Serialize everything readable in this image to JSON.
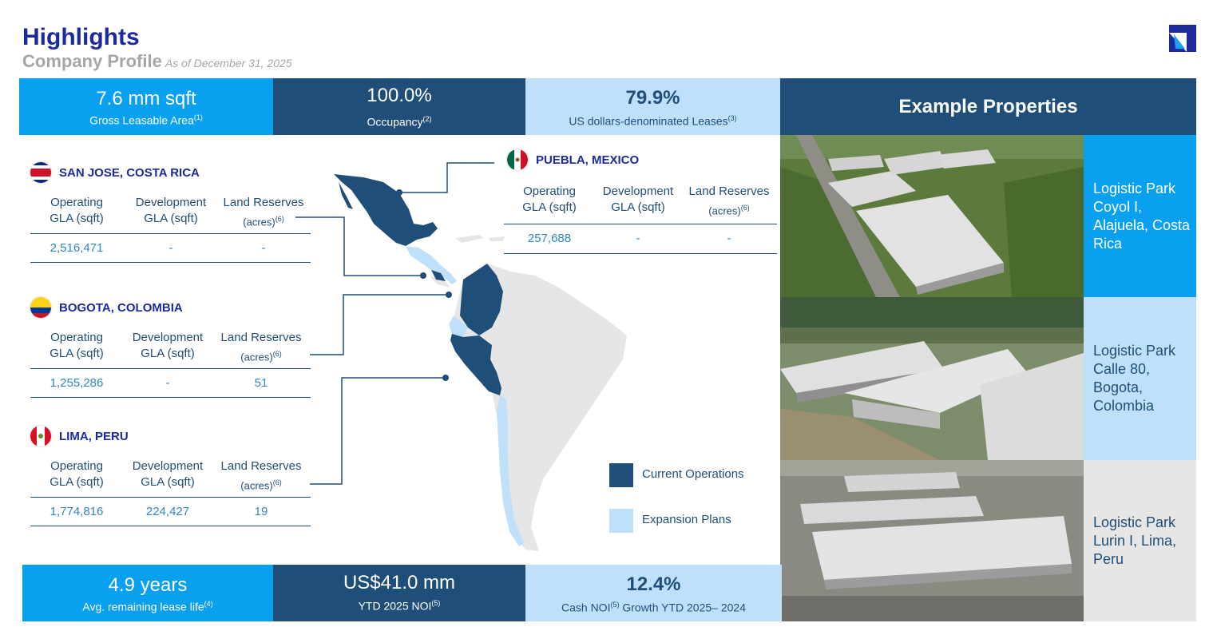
{
  "header": {
    "title": "Highlights",
    "subtitle": "Company Profile",
    "as_of": "As of December 31, 2025"
  },
  "top_stats": [
    {
      "value": "7.6 mm sqft",
      "label": "Gross Leasable Area",
      "note": "(1)"
    },
    {
      "value": "100.0%",
      "label": "Occupancy",
      "note": "(2)"
    },
    {
      "value": "79.9%",
      "label": "US dollars-denominated Leases",
      "note": "(3)"
    }
  ],
  "bottom_stats": [
    {
      "value": "4.9 years",
      "label": "Avg. remaining lease life",
      "note": "(4)"
    },
    {
      "value": "US$41.0 mm",
      "label": "YTD  2025 NOI",
      "note": "(5)"
    },
    {
      "value": "12.4%",
      "label_a": "Cash NOI",
      "note": "(5)",
      "label_b": " Growth YTD 2025– 2024"
    }
  ],
  "columns": {
    "operating": [
      "Operating",
      "GLA (sqft)"
    ],
    "development": [
      "Development",
      "GLA (sqft)"
    ],
    "land": [
      "Land Reserves",
      "(acres)"
    ],
    "land_note": "(6)"
  },
  "locations": [
    {
      "name": "SAN JOSE, COSTA RICA",
      "operating": "2,516,471",
      "development": "-",
      "land": "-"
    },
    {
      "name": "BOGOTA, COLOMBIA",
      "operating": "1,255,286",
      "development": "-",
      "land": "51"
    },
    {
      "name": "LIMA, PERU",
      "operating": "1,774,816",
      "development": "224,427",
      "land": "19"
    },
    {
      "name": "PUEBLA, MEXICO",
      "operating": "257,688",
      "development": "-",
      "land": "-"
    }
  ],
  "legend": {
    "current": "Current Operations",
    "expansion": "Expansion Plans"
  },
  "example": {
    "title": "Example Properties",
    "properties": [
      {
        "label": "Logistic Park Coyol I, Alajuela, Costa Rica"
      },
      {
        "label": "Logistic Park Calle 80, Bogota, Colombia"
      },
      {
        "label": "Logistic Park Lurin I, Lima, Peru"
      }
    ]
  },
  "colors": {
    "bright_blue": "#0aa0f0",
    "navy": "#1f4e79",
    "light_blue": "#bfe0fa",
    "title_blue": "#1b2a9c",
    "map_gray": "#e6e6e6"
  }
}
